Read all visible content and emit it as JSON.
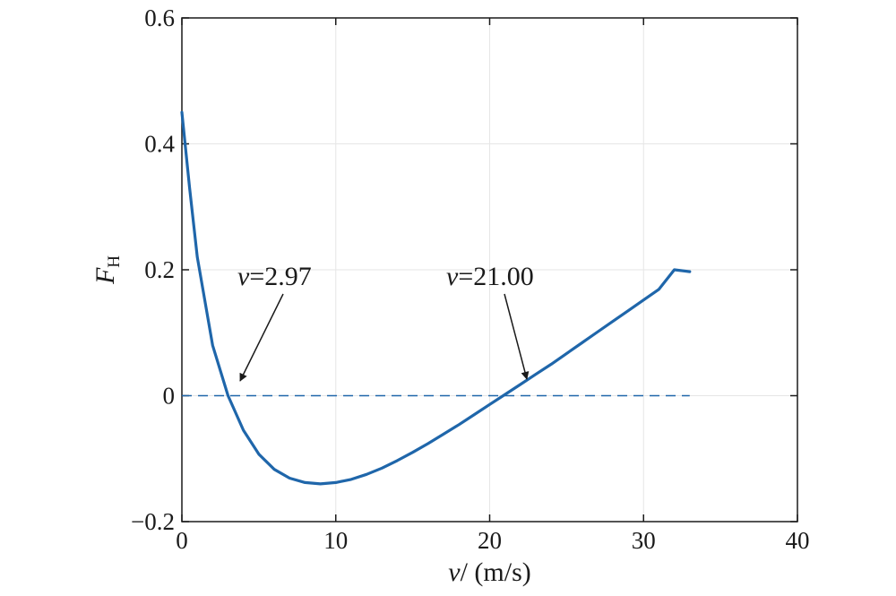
{
  "chart_data": {
    "type": "line",
    "xlabel": "v/ (m/s)",
    "xlabel_var": "v",
    "xlabel_unit": "/ (m/s)",
    "ylabel_var": "F",
    "ylabel_sub": "H",
    "xlim": [
      0,
      40
    ],
    "ylim": [
      -0.2,
      0.6
    ],
    "xticks": [
      0,
      10,
      20,
      30,
      40
    ],
    "xtick_labels": [
      "0",
      "10",
      "20",
      "30",
      "40"
    ],
    "yticks": [
      -0.2,
      0,
      0.2,
      0.4,
      0.6
    ],
    "ytick_labels": [
      "−0.2",
      "0",
      "0.2",
      "0.4",
      "0.6"
    ],
    "grid": true,
    "line_color": "#1f66aa",
    "arrow_color": "#1a1a1a",
    "series": [
      {
        "x": [
          0,
          0.5,
          1,
          2,
          3,
          4,
          5,
          6,
          7,
          8,
          9,
          10,
          11,
          12,
          13,
          14,
          15,
          16,
          17,
          18,
          19,
          20,
          21,
          22,
          23,
          24,
          25,
          26,
          27,
          28,
          29,
          30,
          31,
          32,
          33
        ],
        "y": [
          0.45,
          0.33,
          0.22,
          0.08,
          0.0,
          -0.055,
          -0.093,
          -0.117,
          -0.131,
          -0.138,
          -0.14,
          -0.138,
          -0.133,
          -0.125,
          -0.115,
          -0.103,
          -0.09,
          -0.076,
          -0.061,
          -0.046,
          -0.03,
          -0.014,
          0.002,
          0.018,
          0.034,
          0.05,
          0.067,
          0.084,
          0.101,
          0.118,
          0.135,
          0.152,
          0.169,
          0.2,
          0.197
        ]
      }
    ],
    "reference_line": {
      "y": 0,
      "x": [
        0,
        33
      ],
      "style": "dashed"
    },
    "annotations": [
      {
        "var": "v",
        "text": "=2.97",
        "x": 2.97,
        "y": 0
      },
      {
        "var": "v",
        "text": "=21.00",
        "x": 21.0,
        "y": 0
      }
    ]
  }
}
